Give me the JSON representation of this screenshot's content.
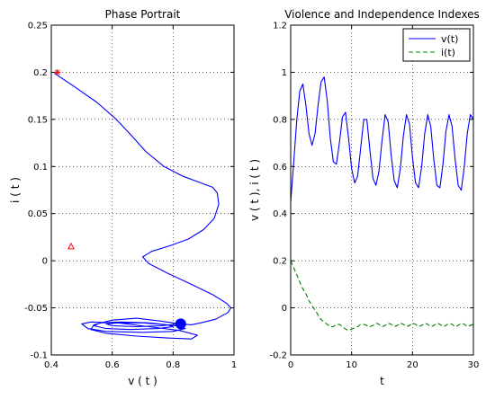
{
  "chart_data": [
    {
      "type": "line",
      "title": "Phase Portrait",
      "xlabel": "v ( t )",
      "ylabel": "i ( t )",
      "xlim": [
        0.4,
        1.0
      ],
      "ylim": [
        -0.1,
        0.25
      ],
      "x_ticks": [
        "0.4",
        "0.6",
        "0.8",
        "1"
      ],
      "y_ticks": [
        "-0.1",
        "-0.05",
        "0",
        "0.05",
        "0.1",
        "0.15",
        "0.2",
        "0.25"
      ],
      "grid": true,
      "series": [
        {
          "color": "#0000ff",
          "points": [
            [
              0.41,
              0.199
            ],
            [
              0.47,
              0.186
            ],
            [
              0.55,
              0.168
            ],
            [
              0.61,
              0.151
            ],
            [
              0.66,
              0.134
            ],
            [
              0.71,
              0.116
            ],
            [
              0.77,
              0.1
            ],
            [
              0.83,
              0.09
            ],
            [
              0.88,
              0.084
            ],
            [
              0.93,
              0.078
            ],
            [
              0.945,
              0.072
            ],
            [
              0.95,
              0.06
            ],
            [
              0.935,
              0.045
            ],
            [
              0.9,
              0.033
            ],
            [
              0.85,
              0.023
            ],
            [
              0.79,
              0.016
            ],
            [
              0.73,
              0.01
            ],
            [
              0.7,
              0.004
            ],
            [
              0.72,
              -0.003
            ],
            [
              0.78,
              -0.013
            ],
            [
              0.86,
              -0.025
            ],
            [
              0.93,
              -0.036
            ],
            [
              0.975,
              -0.045
            ],
            [
              0.99,
              -0.05
            ],
            [
              0.98,
              -0.055
            ],
            [
              0.94,
              -0.062
            ],
            [
              0.89,
              -0.066
            ],
            [
              0.86,
              -0.068
            ],
            [
              0.82,
              -0.067
            ],
            [
              0.76,
              -0.064
            ],
            [
              0.68,
              -0.061
            ],
            [
              0.6,
              -0.063
            ],
            [
              0.54,
              -0.068
            ],
            [
              0.53,
              -0.073
            ],
            [
              0.58,
              -0.077
            ],
            [
              0.68,
              -0.08
            ],
            [
              0.78,
              -0.082
            ],
            [
              0.86,
              -0.083
            ],
            [
              0.88,
              -0.079
            ],
            [
              0.82,
              -0.074
            ],
            [
              0.72,
              -0.07
            ],
            [
              0.62,
              -0.066
            ],
            [
              0.53,
              -0.065
            ],
            [
              0.5,
              -0.067
            ],
            [
              0.52,
              -0.072
            ],
            [
              0.58,
              -0.075
            ],
            [
              0.7,
              -0.076
            ],
            [
              0.8,
              -0.075
            ],
            [
              0.84,
              -0.072
            ],
            [
              0.81,
              -0.069
            ],
            [
              0.72,
              -0.066
            ],
            [
              0.63,
              -0.065
            ],
            [
              0.56,
              -0.066
            ],
            [
              0.54,
              -0.069
            ],
            [
              0.58,
              -0.072
            ],
            [
              0.66,
              -0.073
            ],
            [
              0.75,
              -0.072
            ],
            [
              0.8,
              -0.07
            ],
            [
              0.78,
              -0.068
            ],
            [
              0.7,
              -0.066
            ],
            [
              0.62,
              -0.066
            ],
            [
              0.58,
              -0.067
            ],
            [
              0.6,
              -0.069
            ],
            [
              0.68,
              -0.07
            ],
            [
              0.76,
              -0.069
            ],
            [
              0.82,
              -0.067
            ]
          ]
        }
      ],
      "markers": [
        {
          "shape": "star",
          "color": "#ff0000",
          "x": 0.42,
          "y": 0.2
        },
        {
          "shape": "triangle",
          "color": "#ff0000",
          "x": 0.465,
          "y": 0.015
        },
        {
          "shape": "filled-circle",
          "color": "#0000ff",
          "x": 0.825,
          "y": -0.067
        }
      ]
    },
    {
      "type": "line",
      "title": "Violence and Independence Indexes",
      "xlabel": "t",
      "ylabel": "v ( t ), i ( t )",
      "xlim": [
        0,
        30
      ],
      "ylim": [
        -0.2,
        1.2
      ],
      "x_ticks": [
        "0",
        "10",
        "20",
        "30"
      ],
      "y_ticks": [
        "-0.2",
        "0",
        "0.2",
        "0.4",
        "0.6",
        "0.8",
        "1",
        "1.2"
      ],
      "grid": true,
      "legend_position": "top-right",
      "series": [
        {
          "name": "v(t)",
          "color": "#0000ff",
          "style": "solid",
          "x": [
            0,
            0.5,
            1,
            1.5,
            2,
            2.5,
            3,
            3.5,
            4,
            4.5,
            5,
            5.5,
            6,
            6.5,
            7,
            7.5,
            8,
            8.5,
            9,
            9.5,
            10,
            10.5,
            11,
            11.5,
            12,
            12.5,
            13,
            13.5,
            14,
            14.5,
            15,
            15.5,
            16,
            16.5,
            17,
            17.5,
            18,
            18.5,
            19,
            19.5,
            20,
            20.5,
            21,
            21.5,
            22,
            22.5,
            23,
            23.5,
            24,
            24.5,
            25,
            25.5,
            26,
            26.5,
            27,
            27.5,
            28,
            28.5,
            29,
            29.5,
            30
          ],
          "values": [
            0.45,
            0.62,
            0.8,
            0.92,
            0.95,
            0.86,
            0.74,
            0.69,
            0.74,
            0.86,
            0.96,
            0.98,
            0.88,
            0.72,
            0.62,
            0.61,
            0.7,
            0.81,
            0.83,
            0.72,
            0.59,
            0.53,
            0.56,
            0.68,
            0.8,
            0.8,
            0.67,
            0.55,
            0.52,
            0.58,
            0.71,
            0.82,
            0.79,
            0.65,
            0.54,
            0.51,
            0.59,
            0.73,
            0.82,
            0.78,
            0.64,
            0.53,
            0.51,
            0.6,
            0.74,
            0.82,
            0.77,
            0.63,
            0.52,
            0.51,
            0.61,
            0.75,
            0.82,
            0.77,
            0.63,
            0.52,
            0.5,
            0.6,
            0.74,
            0.82,
            0.8
          ]
        },
        {
          "name": "i(t)",
          "color": "#008000",
          "style": "dashed",
          "x": [
            0,
            0.5,
            1,
            1.5,
            2,
            2.5,
            3,
            3.5,
            4,
            4.5,
            5,
            5.5,
            6,
            6.5,
            7,
            7.5,
            8,
            8.5,
            9,
            9.5,
            10,
            10.5,
            11,
            11.5,
            12,
            12.5,
            13,
            13.5,
            14,
            14.5,
            15,
            15.5,
            16,
            16.5,
            17,
            17.5,
            18,
            18.5,
            19,
            19.5,
            20,
            20.5,
            21,
            21.5,
            22,
            22.5,
            23,
            23.5,
            24,
            24.5,
            25,
            25.5,
            26,
            26.5,
            27,
            27.5,
            28,
            28.5,
            29,
            29.5,
            30
          ],
          "values": [
            0.2,
            0.17,
            0.14,
            0.11,
            0.08,
            0.06,
            0.03,
            0.01,
            -0.01,
            -0.03,
            -0.05,
            -0.06,
            -0.07,
            -0.08,
            -0.08,
            -0.07,
            -0.07,
            -0.08,
            -0.09,
            -0.095,
            -0.09,
            -0.085,
            -0.08,
            -0.07,
            -0.07,
            -0.075,
            -0.08,
            -0.075,
            -0.065,
            -0.07,
            -0.08,
            -0.075,
            -0.065,
            -0.07,
            -0.08,
            -0.075,
            -0.065,
            -0.07,
            -0.08,
            -0.075,
            -0.065,
            -0.07,
            -0.08,
            -0.075,
            -0.065,
            -0.07,
            -0.08,
            -0.075,
            -0.065,
            -0.07,
            -0.08,
            -0.075,
            -0.065,
            -0.07,
            -0.08,
            -0.075,
            -0.065,
            -0.07,
            -0.08,
            -0.075,
            -0.07
          ]
        }
      ]
    }
  ]
}
